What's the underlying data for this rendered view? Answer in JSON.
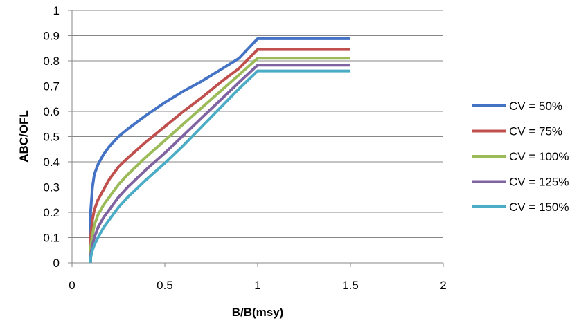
{
  "chart_data": {
    "type": "line",
    "xlabel": "B/B(msy)",
    "ylabel": "ABC/OFL",
    "xlim": [
      0,
      2
    ],
    "ylim": [
      0,
      1
    ],
    "x_ticks": [
      "0",
      "0.5",
      "1",
      "1.5",
      "2"
    ],
    "y_ticks": [
      "0",
      "0.1",
      "0.2",
      "0.3",
      "0.4",
      "0.5",
      "0.6",
      "0.7",
      "0.8",
      "0.9",
      "1"
    ],
    "grid": "horizontal",
    "legend_position": "right",
    "series": [
      {
        "name": "CV = 50%",
        "color": "#4472C4",
        "x": [
          0.1,
          0.1,
          0.11,
          0.12,
          0.14,
          0.17,
          0.2,
          0.25,
          0.3,
          0.4,
          0.5,
          0.6,
          0.7,
          0.8,
          0.9,
          1.0,
          1.5
        ],
        "y": [
          0.0,
          0.2,
          0.3,
          0.35,
          0.39,
          0.43,
          0.46,
          0.5,
          0.53,
          0.585,
          0.635,
          0.68,
          0.72,
          0.765,
          0.81,
          0.888,
          0.888
        ]
      },
      {
        "name": "CV = 75%",
        "color": "#C0504D",
        "x": [
          0.1,
          0.1,
          0.11,
          0.12,
          0.14,
          0.17,
          0.2,
          0.25,
          0.3,
          0.4,
          0.5,
          0.6,
          0.7,
          0.8,
          0.9,
          1.0,
          1.5
        ],
        "y": [
          0.0,
          0.1,
          0.17,
          0.21,
          0.25,
          0.29,
          0.33,
          0.38,
          0.415,
          0.48,
          0.54,
          0.6,
          0.655,
          0.715,
          0.77,
          0.845,
          0.845
        ]
      },
      {
        "name": "CV = 100%",
        "color": "#9BBB59",
        "x": [
          0.1,
          0.1,
          0.11,
          0.12,
          0.14,
          0.17,
          0.2,
          0.25,
          0.3,
          0.4,
          0.5,
          0.6,
          0.7,
          0.8,
          0.9,
          1.0,
          1.5
        ],
        "y": [
          0.0,
          0.06,
          0.11,
          0.15,
          0.19,
          0.23,
          0.26,
          0.31,
          0.35,
          0.42,
          0.485,
          0.55,
          0.615,
          0.68,
          0.745,
          0.81,
          0.81
        ]
      },
      {
        "name": "CV = 125%",
        "color": "#8064A2",
        "x": [
          0.1,
          0.1,
          0.11,
          0.12,
          0.14,
          0.17,
          0.2,
          0.25,
          0.3,
          0.4,
          0.5,
          0.6,
          0.7,
          0.8,
          0.9,
          1.0,
          1.5
        ],
        "y": [
          0.0,
          0.03,
          0.07,
          0.1,
          0.14,
          0.18,
          0.21,
          0.26,
          0.3,
          0.37,
          0.435,
          0.505,
          0.575,
          0.645,
          0.715,
          0.783,
          0.783
        ]
      },
      {
        "name": "CV = 150%",
        "color": "#4BACC6",
        "x": [
          0.1,
          0.1,
          0.11,
          0.12,
          0.14,
          0.17,
          0.2,
          0.25,
          0.3,
          0.4,
          0.5,
          0.6,
          0.7,
          0.8,
          0.9,
          1.0,
          1.5
        ],
        "y": [
          0.0,
          0.02,
          0.05,
          0.07,
          0.1,
          0.14,
          0.17,
          0.22,
          0.26,
          0.33,
          0.395,
          0.465,
          0.54,
          0.615,
          0.69,
          0.76,
          0.76
        ]
      }
    ]
  }
}
